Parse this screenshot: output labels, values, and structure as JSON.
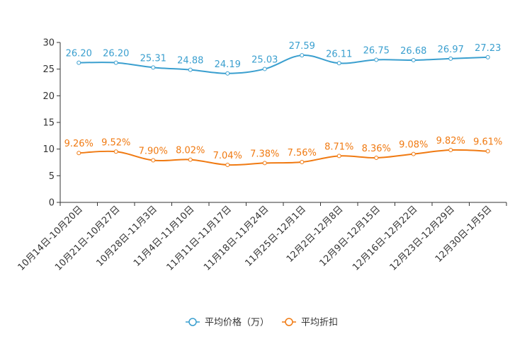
{
  "chart_data": {
    "type": "line",
    "categories": [
      "10月14日-10月20日",
      "10月21日-10月27日",
      "10月28日-11月3日",
      "11月4日-11月10日",
      "11月11日-11月17日",
      "11月18日-11月24日",
      "11月25日-12月1日",
      "12月2日-12月8日",
      "12月9日-12月15日",
      "12月16日-12月22日",
      "12月23日-12月29日",
      "12月30日-1月5日"
    ],
    "series": [
      {
        "name": "平均价格（万）",
        "color": "#3a9fcf",
        "values": [
          26.2,
          26.2,
          25.31,
          24.88,
          24.19,
          25.03,
          27.59,
          26.11,
          26.75,
          26.68,
          26.97,
          27.23
        ],
        "labels": [
          "26.20",
          "26.20",
          "25.31",
          "24.88",
          "24.19",
          "25.03",
          "27.59",
          "26.11",
          "26.75",
          "26.68",
          "26.97",
          "27.23"
        ]
      },
      {
        "name": "平均折扣",
        "color": "#f07a12",
        "values": [
          9.26,
          9.52,
          7.9,
          8.02,
          7.04,
          7.38,
          7.56,
          8.71,
          8.36,
          9.08,
          9.82,
          9.61
        ],
        "labels": [
          "9.26%",
          "9.52%",
          "7.90%",
          "8.02%",
          "7.04%",
          "7.38%",
          "7.56%",
          "8.71%",
          "8.36%",
          "9.08%",
          "9.82%",
          "9.61%"
        ]
      }
    ],
    "ylim": [
      0,
      30
    ],
    "yticks": [
      "0",
      "5",
      "10",
      "15",
      "20",
      "25",
      "30"
    ],
    "grid": false,
    "legend": "bottom-center"
  }
}
